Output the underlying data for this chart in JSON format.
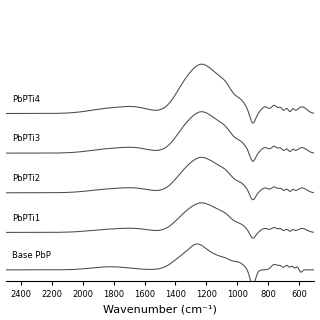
{
  "xlabel": "Wavenumber (cm⁻¹)",
  "xlim": [
    2500,
    500
  ],
  "xticks": [
    2400,
    2200,
    2000,
    1800,
    1600,
    1400,
    1200,
    1000,
    800,
    600
  ],
  "line_color": "#4a4a4a",
  "background_color": "#ffffff",
  "labels": [
    "PbPTi4",
    "PbPTi3",
    "PbPTi2",
    "PbPTi1",
    "Base PbP"
  ],
  "offsets": [
    4.0,
    3.0,
    2.0,
    1.0,
    0.0
  ]
}
